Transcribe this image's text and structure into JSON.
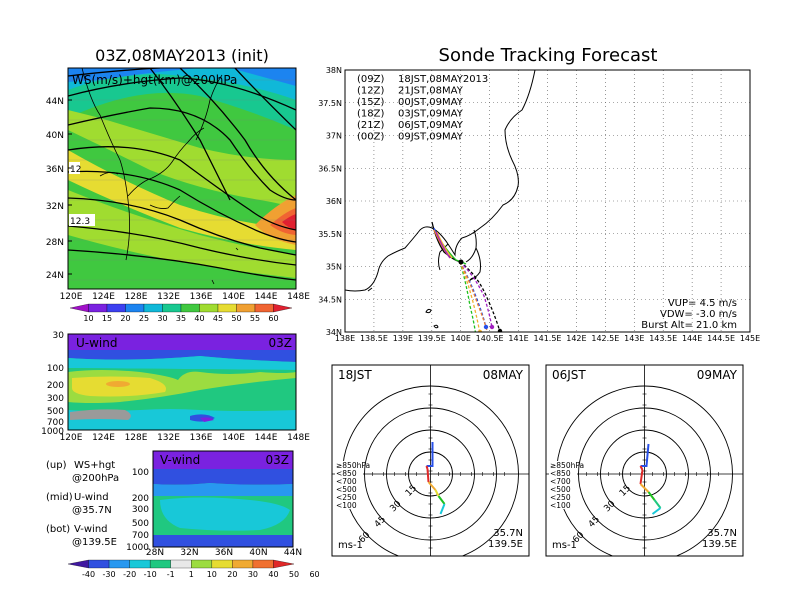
{
  "left": {
    "title": "03Z,08MAY2013 (init)",
    "upper_map": {
      "label": "WS(m/s)+hgt(km)@200hPa",
      "lat_ticks": [
        "44N",
        "40N",
        "36N",
        "32N",
        "28N",
        "24N"
      ],
      "lon_ticks": [
        "120E",
        "124E",
        "128E",
        "132E",
        "136E",
        "140E",
        "144E",
        "148E"
      ],
      "contour_labels": [
        "12",
        "12.3"
      ],
      "colorbar_ticks": [
        "10",
        "15",
        "20",
        "25",
        "30",
        "35",
        "40",
        "45",
        "50",
        "55",
        "60"
      ]
    },
    "u_panel": {
      "label": "U-wind",
      "time": "03Z",
      "p_ticks": [
        "30",
        "100",
        "200",
        "300",
        "500",
        "700",
        "1000"
      ],
      "lon_ticks": [
        "120E",
        "124E",
        "128E",
        "132E",
        "136E",
        "140E",
        "144E",
        "148E"
      ]
    },
    "v_panel": {
      "label": "V-wind",
      "time": "03Z",
      "p_ticks": [
        "100",
        "200",
        "300",
        "500",
        "700",
        "1000"
      ],
      "lat_ticks": [
        "28N",
        "32N",
        "36N",
        "40N",
        "44N"
      ]
    },
    "notes": [
      {
        "key": "(up)",
        "line1": "WS+hgt",
        "line2": "@200hPa"
      },
      {
        "key": "(mid)",
        "line1": "U-wind",
        "line2": "@35.7N"
      },
      {
        "key": "(bot)",
        "line1": "V-wind",
        "line2": "@139.5E"
      }
    ],
    "wind_colorbar_ticks": [
      "-40",
      "-30",
      "-20",
      "-10",
      "-1",
      "1",
      "10",
      "20",
      "30",
      "40",
      "50",
      "60"
    ]
  },
  "right": {
    "title": "Sonde Tracking Forecast",
    "lat_ticks": [
      "38N",
      "37.5N",
      "37N",
      "36.5N",
      "36N",
      "35.5N",
      "35N",
      "34.5N",
      "34N"
    ],
    "lon_ticks": [
      "138E",
      "138.5E",
      "139E",
      "139.5E",
      "140E",
      "140.5E",
      "141E",
      "141.5E",
      "142E",
      "142.5E",
      "143E",
      "143.5E",
      "144E",
      "144.5E",
      "145E"
    ],
    "legend": [
      {
        "z": "(09Z)",
        "jst": "18JST,08MAY2013",
        "color": "#000000"
      },
      {
        "z": "(12Z)",
        "jst": "21JST,08MAY",
        "color": "#a020c0"
      },
      {
        "z": "(15Z)",
        "jst": "00JST,09MAY",
        "color": "#2850e8"
      },
      {
        "z": "(18Z)",
        "jst": "03JST,09MAY",
        "color": "#20c020"
      },
      {
        "z": "(21Z)",
        "jst": "06JST,09MAY",
        "color": "#f0b030"
      },
      {
        "z": "(00Z)",
        "jst": "09JST,09MAY",
        "color": "#f08030"
      }
    ],
    "params": {
      "vup": "VUP= 4.5 m/s",
      "vdw": "VDW= -3.0 m/s",
      "burst": "Burst Alt= 21.0 km"
    }
  },
  "hodographs": [
    {
      "time": "18JST",
      "date": "08MAY",
      "ring_labels": [
        "15",
        "30",
        "45",
        "60"
      ],
      "levels": [
        "≥850hPa",
        "<850",
        "<700",
        "<500",
        "<250",
        "<100"
      ],
      "unit": "ms-1",
      "lat": "35.7N",
      "lon": "139.5E"
    },
    {
      "time": "06JST",
      "date": "09MAY",
      "ring_labels": [
        "15",
        "30",
        "45",
        "60"
      ],
      "levels": [
        "≥850hPa",
        "<850",
        "<700",
        "<500",
        "<250",
        "<100"
      ],
      "unit": "ms-1",
      "lat": "35.7N",
      "lon": "139.5E"
    }
  ],
  "colors": {
    "ws_scale": [
      "#a010c8",
      "#7a22e0",
      "#3c40f0",
      "#1c84f0",
      "#10b8d8",
      "#18c890",
      "#40c840",
      "#a0dc30",
      "#e6dc32",
      "#f0a032",
      "#f06432",
      "#e02030"
    ],
    "wind_scale": [
      "#4018a0",
      "#3050e0",
      "#2898f0",
      "#18c8d8",
      "#20c880",
      "#e8e8e8",
      "#9cdc40",
      "#e6dc32",
      "#f0aa32",
      "#f07030",
      "#e02828"
    ]
  }
}
